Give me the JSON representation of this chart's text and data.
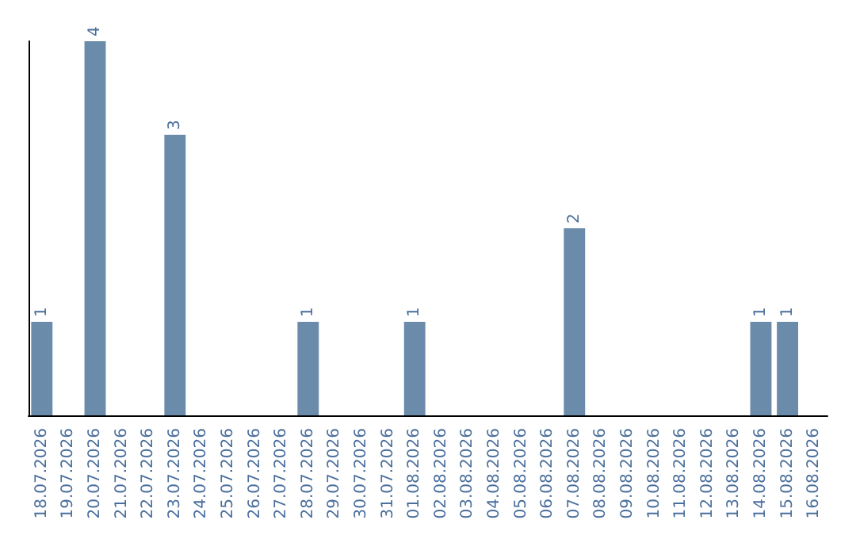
{
  "chart_data": {
    "type": "bar",
    "categories": [
      "18.07.2026",
      "19.07.2026",
      "20.07.2026",
      "21.07.2026",
      "22.07.2026",
      "23.07.2026",
      "24.07.2026",
      "25.07.2026",
      "26.07.2026",
      "27.07.2026",
      "28.07.2026",
      "29.07.2026",
      "30.07.2026",
      "31.07.2026",
      "01.08.2026",
      "02.08.2026",
      "03.08.2026",
      "04.08.2026",
      "05.08.2026",
      "06.08.2026",
      "07.08.2026",
      "08.08.2026",
      "09.08.2026",
      "10.08.2026",
      "11.08.2026",
      "12.08.2026",
      "13.08.2026",
      "14.08.2026",
      "15.08.2026",
      "16.08.2026"
    ],
    "values": [
      1,
      0,
      4,
      0,
      0,
      3,
      0,
      0,
      0,
      0,
      1,
      0,
      0,
      0,
      1,
      0,
      0,
      0,
      0,
      0,
      2,
      0,
      0,
      0,
      0,
      0,
      0,
      1,
      1,
      0
    ],
    "value_labels": [
      "1",
      null,
      "4",
      null,
      null,
      "3",
      null,
      null,
      null,
      null,
      "1",
      null,
      null,
      null,
      "1",
      null,
      null,
      null,
      null,
      null,
      "2",
      null,
      null,
      null,
      null,
      null,
      null,
      "1",
      "1",
      null
    ],
    "color": "#6b8bab",
    "tick_labels": "x"
  }
}
